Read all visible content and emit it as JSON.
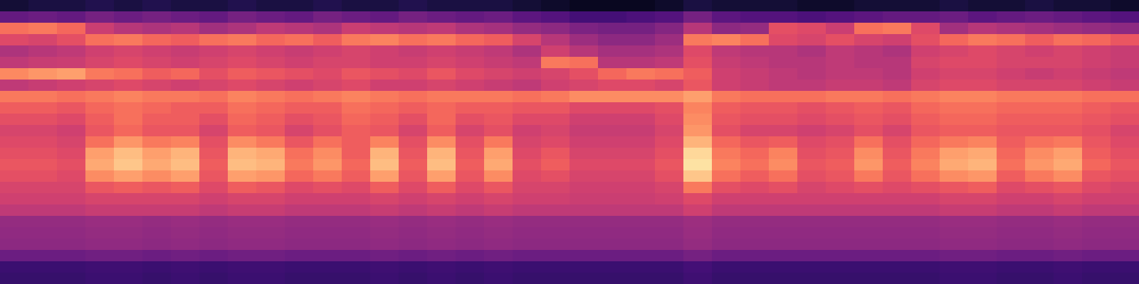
{
  "chart_data": {
    "type": "heatmap",
    "color": "magma",
    "tick_labels": false,
    "value_range": [
      0,
      100
    ],
    "cells": [
      [
        10,
        12,
        12,
        14,
        12,
        14,
        12,
        12,
        14,
        12,
        12,
        14,
        12,
        12,
        14,
        12,
        12,
        12,
        10,
        8,
        6,
        6,
        6,
        8,
        12,
        10,
        10,
        10,
        8,
        8,
        10,
        10,
        10,
        12,
        10,
        10,
        12,
        10,
        10,
        8
      ],
      [
        30,
        32,
        30,
        34,
        32,
        34,
        32,
        30,
        34,
        32,
        30,
        34,
        32,
        30,
        34,
        32,
        30,
        32,
        28,
        26,
        22,
        22,
        24,
        26,
        34,
        28,
        26,
        26,
        24,
        26,
        28,
        30,
        30,
        32,
        28,
        30,
        32,
        30,
        28,
        26
      ],
      [
        70,
        72,
        68,
        55,
        50,
        48,
        50,
        45,
        48,
        52,
        50,
        48,
        55,
        52,
        50,
        52,
        48,
        46,
        42,
        40,
        36,
        34,
        34,
        38,
        50,
        40,
        42,
        62,
        60,
        55,
        70,
        72,
        60,
        45,
        50,
        48,
        46,
        44,
        42,
        40
      ],
      [
        60,
        58,
        62,
        70,
        72,
        68,
        66,
        70,
        72,
        68,
        70,
        66,
        72,
        74,
        70,
        72,
        68,
        66,
        58,
        50,
        44,
        40,
        40,
        44,
        72,
        74,
        70,
        60,
        58,
        62,
        58,
        56,
        62,
        68,
        72,
        70,
        66,
        70,
        68,
        64
      ],
      [
        48,
        50,
        52,
        56,
        58,
        56,
        54,
        56,
        58,
        56,
        54,
        56,
        58,
        56,
        54,
        56,
        54,
        52,
        48,
        56,
        50,
        46,
        46,
        48,
        60,
        52,
        50,
        50,
        48,
        52,
        50,
        48,
        56,
        58,
        60,
        58,
        56,
        58,
        56,
        54
      ],
      [
        52,
        54,
        55,
        58,
        60,
        58,
        56,
        58,
        60,
        58,
        56,
        58,
        58,
        56,
        56,
        58,
        56,
        54,
        52,
        72,
        70,
        50,
        50,
        52,
        62,
        54,
        52,
        50,
        50,
        52,
        50,
        50,
        58,
        60,
        60,
        58,
        58,
        58,
        56,
        54
      ],
      [
        75,
        78,
        80,
        72,
        70,
        66,
        68,
        62,
        66,
        64,
        62,
        60,
        64,
        62,
        60,
        64,
        60,
        58,
        56,
        58,
        62,
        68,
        72,
        70,
        66,
        56,
        54,
        52,
        50,
        52,
        52,
        50,
        56,
        58,
        58,
        56,
        54,
        56,
        54,
        52
      ],
      [
        52,
        54,
        56,
        58,
        60,
        58,
        56,
        58,
        60,
        58,
        56,
        58,
        60,
        56,
        56,
        58,
        56,
        54,
        52,
        56,
        58,
        60,
        60,
        58,
        64,
        56,
        54,
        52,
        52,
        54,
        54,
        52,
        58,
        60,
        60,
        58,
        58,
        58,
        56,
        54
      ],
      [
        72,
        72,
        70,
        72,
        74,
        72,
        72,
        70,
        74,
        72,
        70,
        72,
        74,
        72,
        70,
        72,
        72,
        72,
        70,
        72,
        76,
        76,
        76,
        76,
        80,
        72,
        70,
        70,
        70,
        72,
        72,
        70,
        72,
        74,
        74,
        72,
        72,
        72,
        70,
        70
      ],
      [
        66,
        66,
        64,
        68,
        70,
        68,
        66,
        66,
        70,
        68,
        66,
        66,
        70,
        68,
        66,
        68,
        66,
        66,
        64,
        64,
        60,
        60,
        60,
        62,
        74,
        66,
        64,
        64,
        62,
        64,
        66,
        64,
        68,
        70,
        70,
        68,
        68,
        68,
        66,
        64
      ],
      [
        62,
        62,
        60,
        66,
        70,
        66,
        66,
        62,
        68,
        66,
        62,
        64,
        68,
        66,
        62,
        68,
        62,
        64,
        60,
        60,
        56,
        56,
        56,
        60,
        76,
        64,
        62,
        62,
        60,
        62,
        64,
        62,
        66,
        68,
        68,
        66,
        66,
        66,
        64,
        62
      ],
      [
        58,
        58,
        56,
        64,
        68,
        64,
        64,
        58,
        66,
        64,
        58,
        62,
        66,
        64,
        58,
        66,
        58,
        62,
        56,
        58,
        54,
        54,
        54,
        58,
        78,
        62,
        58,
        58,
        56,
        58,
        62,
        58,
        64,
        66,
        66,
        64,
        64,
        64,
        62,
        58
      ],
      [
        60,
        60,
        58,
        70,
        78,
        72,
        74,
        62,
        76,
        72,
        64,
        70,
        66,
        74,
        62,
        76,
        62,
        72,
        58,
        60,
        56,
        56,
        56,
        60,
        84,
        68,
        64,
        66,
        60,
        62,
        70,
        62,
        68,
        72,
        74,
        66,
        70,
        72,
        64,
        60
      ],
      [
        62,
        62,
        60,
        80,
        86,
        80,
        84,
        64,
        84,
        82,
        70,
        76,
        66,
        84,
        64,
        84,
        64,
        80,
        60,
        64,
        58,
        58,
        58,
        62,
        92,
        72,
        68,
        74,
        62,
        64,
        76,
        64,
        72,
        80,
        82,
        68,
        76,
        80,
        66,
        62
      ],
      [
        64,
        64,
        62,
        82,
        88,
        82,
        86,
        66,
        86,
        84,
        72,
        78,
        68,
        86,
        66,
        86,
        66,
        82,
        62,
        66,
        60,
        60,
        60,
        64,
        94,
        74,
        70,
        76,
        64,
        66,
        78,
        66,
        74,
        82,
        84,
        70,
        78,
        82,
        68,
        64
      ],
      [
        62,
        62,
        60,
        76,
        80,
        76,
        80,
        64,
        80,
        78,
        68,
        72,
        66,
        80,
        64,
        80,
        64,
        76,
        60,
        62,
        58,
        58,
        58,
        62,
        88,
        70,
        66,
        70,
        62,
        64,
        72,
        64,
        70,
        76,
        78,
        66,
        72,
        76,
        64,
        62
      ],
      [
        58,
        58,
        58,
        64,
        66,
        64,
        66,
        60,
        66,
        64,
        60,
        62,
        60,
        66,
        60,
        66,
        60,
        64,
        58,
        58,
        56,
        56,
        56,
        58,
        72,
        62,
        60,
        62,
        58,
        60,
        62,
        60,
        62,
        64,
        66,
        60,
        62,
        64,
        60,
        58
      ],
      [
        56,
        56,
        56,
        58,
        58,
        58,
        58,
        56,
        58,
        58,
        56,
        56,
        56,
        58,
        56,
        58,
        56,
        58,
        56,
        56,
        55,
        55,
        55,
        56,
        60,
        56,
        56,
        56,
        56,
        56,
        56,
        56,
        56,
        58,
        58,
        56,
        56,
        58,
        56,
        56
      ],
      [
        52,
        52,
        52,
        54,
        54,
        54,
        54,
        52,
        54,
        54,
        52,
        52,
        52,
        54,
        52,
        54,
        52,
        54,
        52,
        52,
        52,
        52,
        52,
        52,
        56,
        52,
        52,
        52,
        52,
        52,
        52,
        52,
        52,
        54,
        54,
        52,
        52,
        54,
        52,
        52
      ],
      [
        42,
        42,
        42,
        43,
        43,
        42,
        43,
        42,
        43,
        43,
        42,
        42,
        42,
        43,
        42,
        43,
        42,
        43,
        42,
        42,
        42,
        42,
        42,
        42,
        44,
        42,
        42,
        42,
        42,
        42,
        42,
        42,
        42,
        43,
        43,
        42,
        42,
        43,
        42,
        42
      ],
      [
        41,
        41,
        41,
        42,
        42,
        41,
        42,
        41,
        42,
        42,
        41,
        41,
        41,
        42,
        41,
        42,
        41,
        42,
        41,
        41,
        41,
        41,
        41,
        41,
        43,
        41,
        41,
        41,
        41,
        41,
        41,
        41,
        41,
        42,
        42,
        41,
        41,
        42,
        41,
        41
      ],
      [
        40,
        40,
        40,
        41,
        41,
        40,
        41,
        40,
        41,
        41,
        40,
        40,
        40,
        41,
        40,
        41,
        40,
        41,
        40,
        40,
        40,
        40,
        40,
        40,
        42,
        40,
        40,
        40,
        40,
        40,
        40,
        40,
        40,
        41,
        41,
        40,
        40,
        41,
        40,
        40
      ],
      [
        32,
        32,
        32,
        33,
        33,
        32,
        33,
        32,
        33,
        33,
        32,
        32,
        32,
        33,
        32,
        33,
        32,
        33,
        32,
        32,
        32,
        32,
        32,
        32,
        34,
        32,
        32,
        32,
        32,
        32,
        32,
        32,
        32,
        33,
        33,
        32,
        32,
        33,
        32,
        32
      ],
      [
        20,
        20,
        20,
        21,
        21,
        20,
        21,
        20,
        21,
        21,
        20,
        20,
        20,
        21,
        20,
        21,
        20,
        21,
        20,
        20,
        20,
        20,
        20,
        20,
        22,
        20,
        20,
        20,
        20,
        20,
        20,
        20,
        20,
        21,
        21,
        20,
        20,
        21,
        20,
        20
      ],
      [
        19,
        19,
        19,
        20,
        20,
        19,
        20,
        19,
        20,
        20,
        19,
        19,
        19,
        20,
        19,
        20,
        19,
        20,
        19,
        19,
        19,
        19,
        19,
        19,
        21,
        19,
        19,
        19,
        19,
        19,
        19,
        19,
        19,
        20,
        20,
        19,
        19,
        20,
        19,
        19
      ]
    ]
  }
}
